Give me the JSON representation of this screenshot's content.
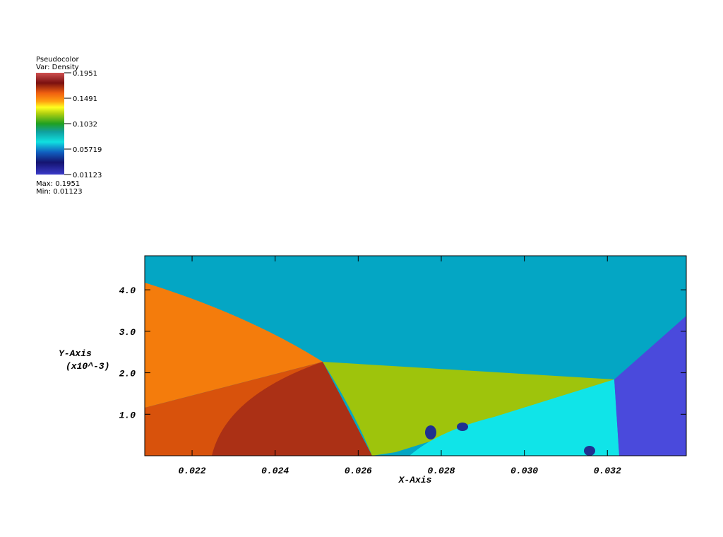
{
  "chart_data": {
    "type": "pseudocolor",
    "legend_title": "Pseudocolor",
    "legend_var": "Var: Density",
    "colorlim": [
      0.01123,
      0.1951
    ],
    "colorticks": [
      0.1951,
      0.1491,
      0.1032,
      0.05719,
      0.01123
    ],
    "max_label": "Max: 0.1951",
    "min_label": "Min: 0.01123",
    "x_label": "X-Axis",
    "y_label": "Y-Axis",
    "y_unit": "(x10^-3)",
    "xlim": [
      0.02086,
      0.0339
    ],
    "xticks": [
      0.022,
      0.024,
      0.026,
      0.028,
      {
        "value": 0.03,
        "label": "0.030"
      },
      0.032
    ],
    "ylim": [
      0,
      4.82
    ],
    "yticks": [
      {
        "value": 1,
        "label": "1.0"
      },
      {
        "value": 2,
        "label": "2.0"
      },
      {
        "value": 3,
        "label": "3.0"
      },
      {
        "value": 4,
        "label": "4.0"
      }
    ]
  }
}
